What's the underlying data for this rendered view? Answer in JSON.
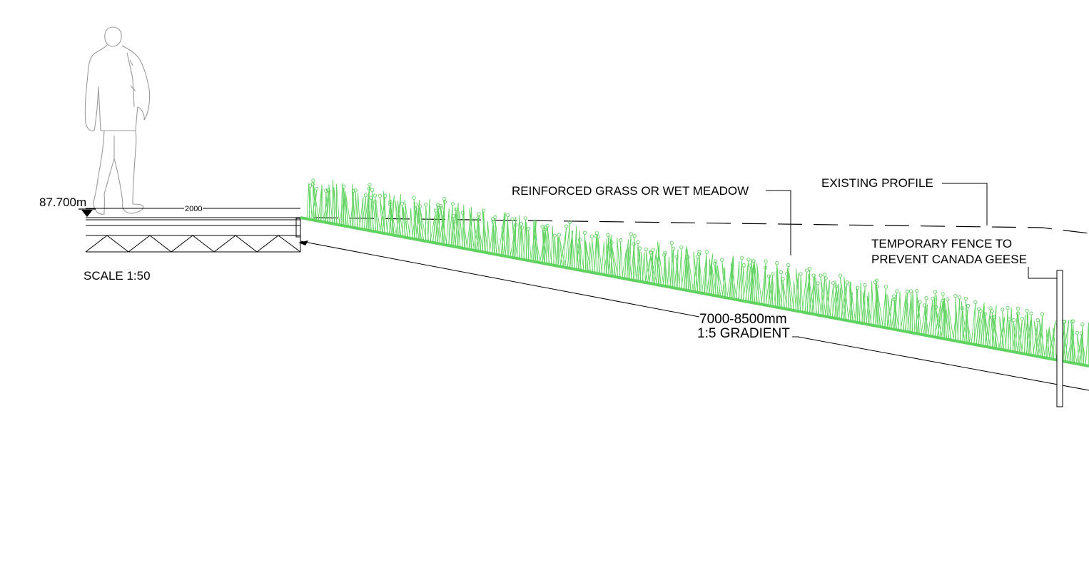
{
  "section": {
    "level_label": "87.700m",
    "path_width_label": "2000",
    "scale_label": "SCALE 1:50",
    "slope_length_label": "7000-8500mm",
    "gradient_label": "1:5 GRADIENT",
    "grass_label": "REINFORCED GRASS OR WET MEADOW",
    "existing_profile_label": "EXISTING PROFILE",
    "fence_label_line1": "TEMPORARY FENCE TO",
    "fence_label_line2": "PREVENT CANADA GEESE"
  },
  "colors": {
    "linework": "#000000",
    "grass": "#5fd35f",
    "figure": "#9a9a9a",
    "background": "#ffffff"
  },
  "icons": {
    "level_marker": "triangle-down-icon",
    "human_figure": "person-silhouette-icon"
  }
}
